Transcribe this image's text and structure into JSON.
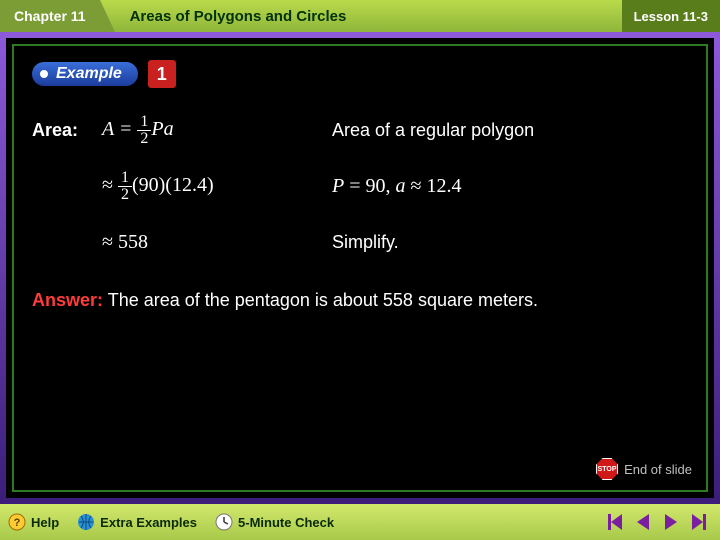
{
  "header": {
    "chapter": "Chapter 11",
    "title": "Areas of Polygons and Circles",
    "lesson": "Lesson 11-3"
  },
  "example": {
    "label": "Example",
    "number": "1"
  },
  "work": {
    "label": "Area:",
    "rows": [
      {
        "expr_html": "<i>A</i> = <span class='frac'><span class='n'>1</span><span class='d'>2</span></span><i>Pa</i>",
        "explain": "Area of a regular polygon"
      },
      {
        "expr_html": "<span class='upright'>≈</span> <span class='frac'><span class='n'>1</span><span class='d'>2</span></span><span class='upright'>(90)(12.4)</span>",
        "explain_html": "<i>P</i> = 90, <i>a</i> ≈ 12.4"
      },
      {
        "expr_html": "<span class='upright'>≈ 558</span>",
        "explain": "Simplify."
      }
    ]
  },
  "answer": {
    "keyword": "Answer:",
    "text": "The area of the pentagon is about 558 square meters."
  },
  "end_of_slide": "End of slide",
  "footer": {
    "help": "Help",
    "extra": "Extra Examples",
    "check": "5-Minute Check"
  },
  "colors": {
    "header_tab": "#7c9c36",
    "title_grad_top": "#b9da4a",
    "title_grad_bot": "#8fb63b",
    "lesson_tab": "#5a7d1c",
    "frame_purple_top": "#8c59d9",
    "frame_purple_bot": "#3c1e7a",
    "frame_green": "#2a7a1f",
    "example_blue_top": "#3a6ed8",
    "example_blue_bot": "#1b3c9c",
    "example_red": "#c92020",
    "answer_red": "#ff3b3b",
    "footer_top": "#d2e86c",
    "footer_bot": "#a8c94a",
    "nav_purple": "#7a1fa0",
    "background": "#000000",
    "text": "#ffffff"
  }
}
